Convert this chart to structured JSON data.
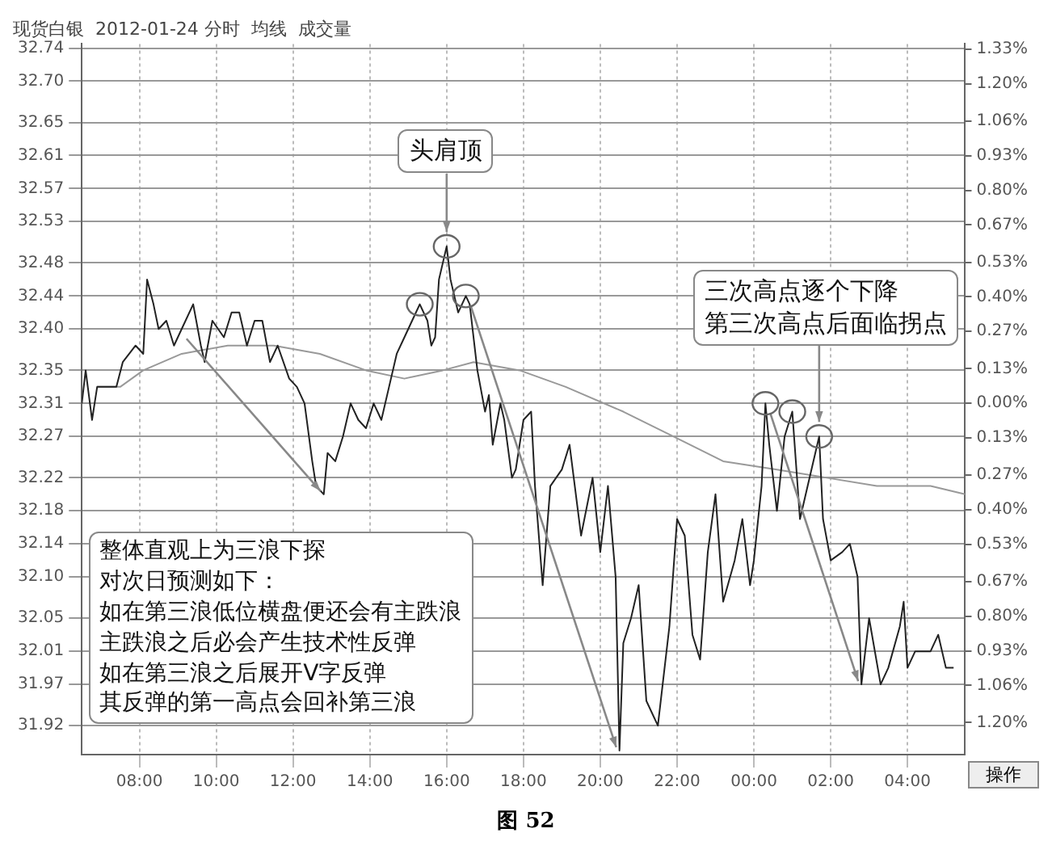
{
  "chart_data": {
    "type": "line",
    "title": "现货白银  2012-01-24 分时  均线  成交量",
    "xlim": [
      "2012-01-24T06:30",
      "2012-01-25T05:30"
    ],
    "xticks": [
      {
        "value": "2012-01-24T08:00",
        "label": "08:00"
      },
      {
        "value": "2012-01-24T10:00",
        "label": "10:00"
      },
      {
        "value": "2012-01-24T12:00",
        "label": "12:00"
      },
      {
        "value": "2012-01-24T14:00",
        "label": "14:00"
      },
      {
        "value": "2012-01-24T16:00",
        "label": "16:00"
      },
      {
        "value": "2012-01-24T18:00",
        "label": "18:00"
      },
      {
        "value": "2012-01-24T20:00",
        "label": "20:00"
      },
      {
        "value": "2012-01-24T22:00",
        "label": "22:00"
      },
      {
        "value": "2012-01-25T00:00",
        "label": "00:00"
      },
      {
        "value": "2012-01-25T02:00",
        "label": "02:00"
      },
      {
        "value": "2012-01-25T04:00",
        "label": "04:00"
      }
    ],
    "ylim": [
      31.885,
      32.745
    ],
    "yticks": [
      32.74,
      {
        "value": 32.7,
        "label": "32.70"
      },
      32.65,
      32.61,
      32.57,
      32.53,
      32.48,
      32.44,
      {
        "value": 32.4,
        "label": "32.40"
      },
      32.35,
      32.31,
      32.27,
      32.22,
      32.18,
      32.14,
      {
        "value": 32.1,
        "label": "32.10"
      },
      32.05,
      32.01,
      31.97,
      31.92
    ],
    "y2lim": [
      -1.32,
      1.35
    ],
    "y2ticks": [
      {
        "value": 1.33,
        "label": "1.33%"
      },
      {
        "value": 1.2,
        "label": "1.20%"
      },
      {
        "value": 1.06,
        "label": "1.06%"
      },
      {
        "value": 0.93,
        "label": "0.93%"
      },
      {
        "value": 0.8,
        "label": "0.80%"
      },
      {
        "value": 0.67,
        "label": "0.67%"
      },
      {
        "value": 0.53,
        "label": "0.53%"
      },
      {
        "value": 0.4,
        "label": "0.40%"
      },
      {
        "value": 0.27,
        "label": "0.27%"
      },
      {
        "value": 0.13,
        "label": "0.13%"
      },
      {
        "value": 0,
        "label": "0.00%"
      },
      {
        "value": -0.13,
        "label": "0.13%"
      },
      {
        "value": -0.27,
        "label": "0.27%"
      },
      {
        "value": -0.4,
        "label": "0.40%"
      },
      {
        "value": -0.53,
        "label": "0.53%"
      },
      {
        "value": -0.67,
        "label": "0.67%"
      },
      {
        "value": -0.8,
        "label": "0.80%"
      },
      {
        "value": -0.93,
        "label": "0.93%"
      },
      {
        "value": -1.06,
        "label": "1.06%"
      },
      {
        "value": -1.2,
        "label": "1.20%"
      }
    ],
    "grid": true,
    "series": [
      {
        "color": "#222222",
        "x": [
          "2012-01-24T06:30",
          "2012-01-24T06:36",
          "2012-01-24T06:46",
          "2012-01-24T06:54",
          "2012-01-24T07:24",
          "2012-01-24T07:34",
          "2012-01-24T07:54",
          "2012-01-24T08:06",
          "2012-01-24T08:12",
          "2012-01-24T08:22",
          "2012-01-24T08:30",
          "2012-01-24T08:42",
          "2012-01-24T08:54",
          "2012-01-24T09:06",
          "2012-01-24T09:24",
          "2012-01-24T09:36",
          "2012-01-24T09:42",
          "2012-01-24T09:54",
          "2012-01-24T10:12",
          "2012-01-24T10:24",
          "2012-01-24T10:36",
          "2012-01-24T10:48",
          "2012-01-24T11:00",
          "2012-01-24T11:12",
          "2012-01-24T11:24",
          "2012-01-24T11:36",
          "2012-01-24T11:54",
          "2012-01-24T12:06",
          "2012-01-24T12:18",
          "2012-01-24T12:30",
          "2012-01-24T12:36",
          "2012-01-24T12:48",
          "2012-01-24T12:54",
          "2012-01-24T13:06",
          "2012-01-24T13:18",
          "2012-01-24T13:30",
          "2012-01-24T13:42",
          "2012-01-24T13:54",
          "2012-01-24T14:06",
          "2012-01-24T14:18",
          "2012-01-24T14:30",
          "2012-01-24T14:42",
          "2012-01-24T14:54",
          "2012-01-24T15:06",
          "2012-01-24T15:18",
          "2012-01-24T15:30",
          "2012-01-24T15:36",
          "2012-01-24T15:42",
          "2012-01-24T15:48",
          "2012-01-24T16:00",
          "2012-01-24T16:06",
          "2012-01-24T16:18",
          "2012-01-24T16:30",
          "2012-01-24T16:36",
          "2012-01-24T16:48",
          "2012-01-24T17:00",
          "2012-01-24T17:06",
          "2012-01-24T17:12",
          "2012-01-24T17:24",
          "2012-01-24T17:30",
          "2012-01-24T17:42",
          "2012-01-24T17:48",
          "2012-01-24T18:00",
          "2012-01-24T18:12",
          "2012-01-24T18:18",
          "2012-01-24T18:30",
          "2012-01-24T18:42",
          "2012-01-24T19:00",
          "2012-01-24T19:12",
          "2012-01-24T19:30",
          "2012-01-24T19:48",
          "2012-01-24T20:00",
          "2012-01-24T20:12",
          "2012-01-24T20:24",
          "2012-01-24T20:30",
          "2012-01-24T20:36",
          "2012-01-24T20:48",
          "2012-01-24T21:00",
          "2012-01-24T21:12",
          "2012-01-24T21:30",
          "2012-01-24T21:48",
          "2012-01-24T22:00",
          "2012-01-24T22:12",
          "2012-01-24T22:24",
          "2012-01-24T22:36",
          "2012-01-24T22:48",
          "2012-01-24T23:00",
          "2012-01-24T23:12",
          "2012-01-24T23:30",
          "2012-01-24T23:42",
          "2012-01-24T23:54",
          "2012-01-25T00:00",
          "2012-01-25T00:12",
          "2012-01-25T00:18",
          "2012-01-25T00:24",
          "2012-01-25T00:36",
          "2012-01-25T00:48",
          "2012-01-25T01:00",
          "2012-01-25T01:12",
          "2012-01-25T01:24",
          "2012-01-25T01:42",
          "2012-01-25T01:48",
          "2012-01-25T02:00",
          "2012-01-25T02:18",
          "2012-01-25T02:30",
          "2012-01-25T02:42",
          "2012-01-25T02:48",
          "2012-01-25T03:00",
          "2012-01-25T03:18",
          "2012-01-25T03:30",
          "2012-01-25T03:48",
          "2012-01-25T03:54",
          "2012-01-25T04:00",
          "2012-01-25T04:12",
          "2012-01-25T04:36",
          "2012-01-25T04:48",
          "2012-01-25T05:00",
          "2012-01-25T05:12"
        ],
        "values": [
          32.31,
          32.35,
          32.29,
          32.33,
          32.33,
          32.36,
          32.38,
          32.37,
          32.46,
          32.43,
          32.4,
          32.41,
          32.38,
          32.4,
          32.43,
          32.38,
          32.36,
          32.41,
          32.39,
          32.42,
          32.42,
          32.38,
          32.41,
          32.41,
          32.36,
          32.38,
          32.34,
          32.33,
          32.31,
          32.24,
          32.21,
          32.2,
          32.25,
          32.24,
          32.27,
          32.31,
          32.29,
          32.28,
          32.31,
          32.29,
          32.33,
          32.37,
          32.39,
          32.41,
          32.43,
          32.41,
          32.38,
          32.39,
          32.46,
          32.5,
          32.46,
          32.42,
          32.44,
          32.43,
          32.35,
          32.3,
          32.32,
          32.26,
          32.31,
          32.29,
          32.22,
          32.23,
          32.29,
          32.3,
          32.21,
          32.09,
          32.21,
          32.23,
          32.26,
          32.15,
          32.22,
          32.13,
          32.21,
          32.1,
          31.89,
          32.02,
          32.05,
          32.09,
          31.95,
          31.92,
          32.04,
          32.17,
          32.15,
          32.03,
          32.0,
          32.13,
          32.2,
          32.07,
          32.12,
          32.17,
          32.09,
          32.12,
          32.21,
          32.31,
          32.26,
          32.18,
          32.27,
          32.3,
          32.17,
          32.21,
          32.27,
          32.17,
          32.12,
          32.13,
          32.14,
          32.1,
          31.97,
          32.05,
          31.97,
          31.99,
          32.04,
          32.07,
          31.99,
          32.01,
          32.01,
          32.03,
          31.99,
          31.99
        ]
      },
      {
        "color": "#999999",
        "x": [
          "2012-01-24T06:54",
          "2012-01-24T07:30",
          "2012-01-24T08:06",
          "2012-01-24T09:06",
          "2012-01-24T10:18",
          "2012-01-24T11:30",
          "2012-01-24T12:42",
          "2012-01-24T13:54",
          "2012-01-24T14:54",
          "2012-01-24T15:54",
          "2012-01-24T16:42",
          "2012-01-24T17:54",
          "2012-01-24T19:06",
          "2012-01-24T20:36",
          "2012-01-24T21:54",
          "2012-01-24T23:12",
          "2012-01-25T00:36",
          "2012-01-25T01:54",
          "2012-01-25T03:12",
          "2012-01-25T04:36",
          "2012-01-25T05:30"
        ],
        "values": [
          32.33,
          32.33,
          32.35,
          32.37,
          32.38,
          32.38,
          32.37,
          32.35,
          32.34,
          32.35,
          32.36,
          32.35,
          32.33,
          32.3,
          32.27,
          32.24,
          32.23,
          32.22,
          32.21,
          32.21,
          32.2
        ]
      }
    ],
    "annotations": [
      {
        "text": "头肩顶",
        "x": "2012-01-24T16:00",
        "y": 32.5
      },
      "三次高点逐个下降",
      {
        "text": "第三次高点后面临拐点",
        "x": "2012-01-25T01:42",
        "y": 32.27
      },
      "整体直观上为三浪下探",
      "对次日预测如下：",
      "如在第三浪低位横盘便还会有主跌浪",
      "主跌浪之后必会产生技术性反弹",
      "如在第三浪之后展开V字反弹",
      "其反弹的第一高点会回补第三浪",
      "操作",
      "图 52"
    ]
  }
}
